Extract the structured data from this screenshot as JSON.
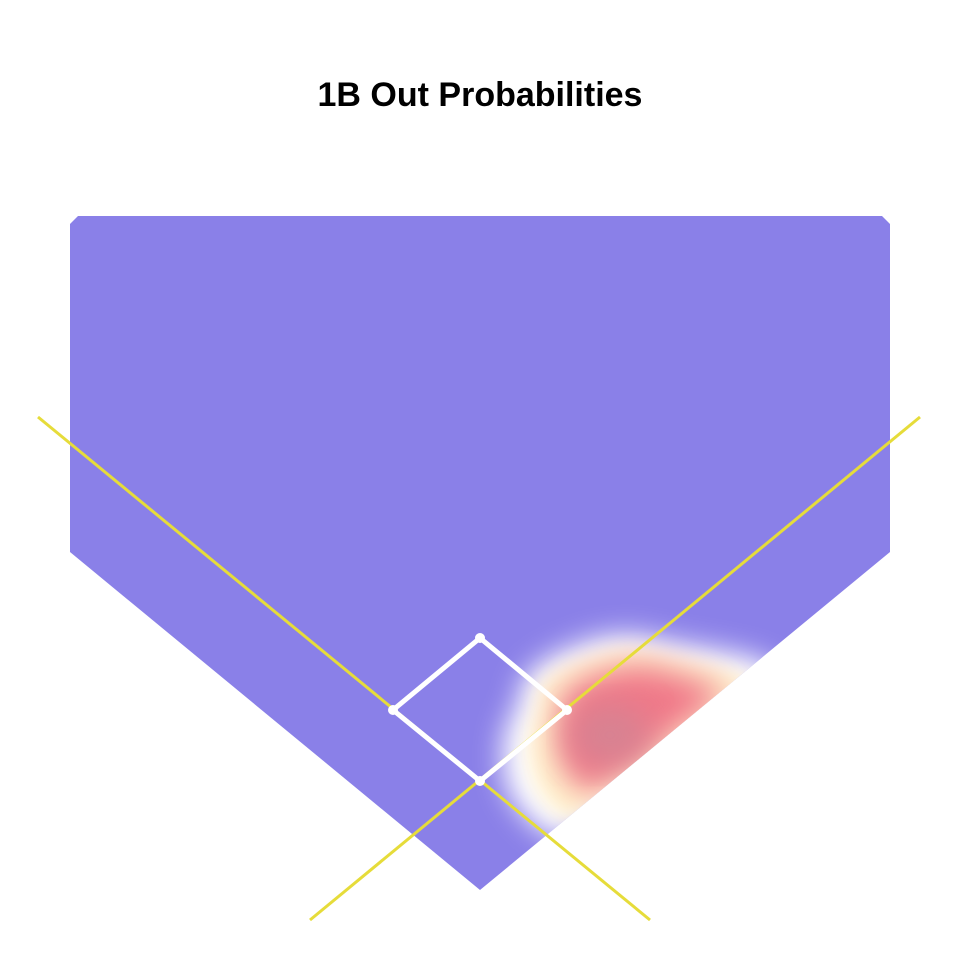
{
  "chart_data": {
    "type": "heatmap",
    "title": "1B Out Probabilities",
    "xlabel": "",
    "ylabel": "",
    "grid": false,
    "legend": "none",
    "colors": {
      "low": "#8a80e8",
      "transition": "#ffffff",
      "high": "#f07888",
      "peak": "#d88292",
      "foul_lines": "#e6dc3a",
      "bases": "#ffffff"
    },
    "field": {
      "background_probability": 0.0,
      "high_region": {
        "description": "first base side, right of infield diamond",
        "peak_probability": 1.0
      }
    }
  }
}
